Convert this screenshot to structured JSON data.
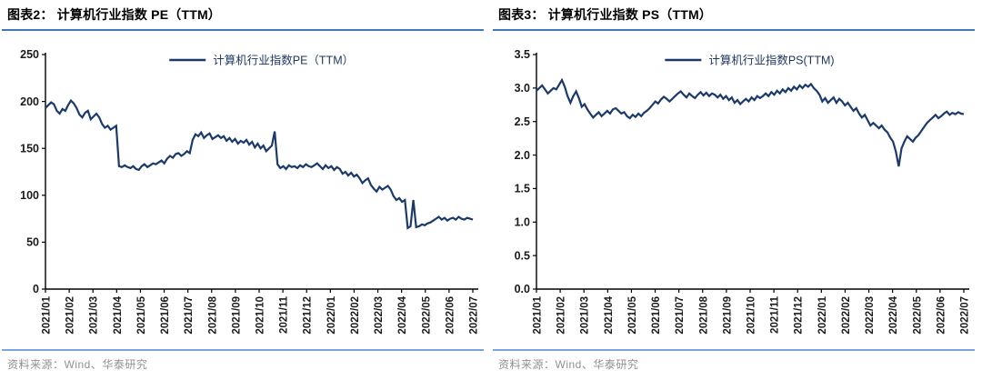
{
  "colors": {
    "line": "#1b3a6b",
    "legend_text": "#1f3864",
    "title_underline": "#4377b8",
    "bottom_rule": "#7ba7d8",
    "axis": "#000000",
    "tick_label": "#1a1a1a",
    "source_text": "#919191"
  },
  "chart_data": [
    {
      "type": "line",
      "title": "图表2：  计算机行业指数 PE（TTM）",
      "legend": "计算机行业指数PE（TTM）",
      "legend_position": "top-center",
      "grid": false,
      "ylim": [
        0,
        250
      ],
      "yticks": [
        0,
        50,
        100,
        150,
        200,
        250
      ],
      "ytick_decimals": 0,
      "categories": [
        "2021/01",
        "2021/02",
        "2021/03",
        "2021/04",
        "2021/05",
        "2021/06",
        "2021/07",
        "2021/08",
        "2021/09",
        "2021/10",
        "2021/11",
        "2021/12",
        "2022/01",
        "2022/02",
        "2022/03",
        "2022/04",
        "2022/05",
        "2022/06",
        "2022/07"
      ],
      "series": [
        {
          "name": "计算机行业指数PE（TTM）",
          "values": [
            193,
            196,
            199,
            197,
            190,
            187,
            192,
            190,
            196,
            201,
            198,
            193,
            186,
            183,
            188,
            190,
            181,
            184,
            187,
            183,
            176,
            172,
            174,
            170,
            172,
            174,
            131,
            130,
            132,
            130,
            129,
            131,
            128,
            127,
            131,
            133,
            130,
            132,
            134,
            133,
            135,
            137,
            134,
            139,
            142,
            140,
            144,
            145,
            142,
            144,
            147,
            145,
            159,
            165,
            163,
            167,
            161,
            164,
            166,
            160,
            162,
            164,
            161,
            163,
            158,
            161,
            157,
            160,
            155,
            158,
            156,
            159,
            154,
            157,
            151,
            155,
            150,
            153,
            147,
            150,
            153,
            168,
            133,
            129,
            131,
            128,
            132,
            130,
            131,
            129,
            132,
            130,
            133,
            131,
            130,
            132,
            134,
            131,
            128,
            132,
            129,
            131,
            127,
            130,
            128,
            123,
            125,
            121,
            124,
            120,
            122,
            118,
            113,
            116,
            118,
            111,
            107,
            104,
            109,
            106,
            108,
            110,
            106,
            99,
            95,
            97,
            93,
            95,
            65,
            67,
            95,
            66,
            67,
            69,
            68,
            70,
            71,
            73,
            75,
            77,
            74,
            76,
            73,
            75,
            76,
            74,
            77,
            75,
            74,
            76,
            75,
            74
          ]
        }
      ],
      "source": "资料来源：Wind、华泰研究"
    },
    {
      "type": "line",
      "title": "图表3：  计算机行业指数 PS（TTM）",
      "legend": "计算机行业指数PS(TTM)",
      "legend_position": "top-center",
      "grid": false,
      "ylim": [
        0,
        3.5
      ],
      "yticks": [
        0,
        0.5,
        1.0,
        1.5,
        2.0,
        2.5,
        3.0,
        3.5
      ],
      "ytick_decimals": 1,
      "categories": [
        "2021/01",
        "2021/02",
        "2021/03",
        "2021/04",
        "2021/05",
        "2021/06",
        "2021/07",
        "2021/08",
        "2021/09",
        "2021/10",
        "2021/11",
        "2021/12",
        "2022/01",
        "2022/02",
        "2022/03",
        "2022/04",
        "2022/05",
        "2022/06",
        "2022/07"
      ],
      "series": [
        {
          "name": "计算机行业指数PS(TTM)",
          "values": [
            2.96,
            3.0,
            3.04,
            2.98,
            2.92,
            2.96,
            3.0,
            2.98,
            3.05,
            3.12,
            3.02,
            2.88,
            2.78,
            2.88,
            2.95,
            2.85,
            2.72,
            2.76,
            2.68,
            2.62,
            2.56,
            2.6,
            2.64,
            2.58,
            2.62,
            2.66,
            2.62,
            2.68,
            2.7,
            2.66,
            2.62,
            2.64,
            2.58,
            2.55,
            2.6,
            2.57,
            2.62,
            2.58,
            2.63,
            2.66,
            2.7,
            2.75,
            2.8,
            2.77,
            2.83,
            2.87,
            2.84,
            2.8,
            2.84,
            2.88,
            2.92,
            2.95,
            2.9,
            2.86,
            2.92,
            2.88,
            2.85,
            2.9,
            2.94,
            2.89,
            2.93,
            2.88,
            2.92,
            2.9,
            2.86,
            2.9,
            2.84,
            2.88,
            2.82,
            2.86,
            2.78,
            2.82,
            2.76,
            2.8,
            2.84,
            2.8,
            2.86,
            2.82,
            2.88,
            2.85,
            2.88,
            2.92,
            2.88,
            2.94,
            2.9,
            2.96,
            2.92,
            2.98,
            2.94,
            3.0,
            2.96,
            3.02,
            2.98,
            3.04,
            3.0,
            3.05,
            3.02,
            3.06,
            3.0,
            2.96,
            2.9,
            2.8,
            2.85,
            2.78,
            2.82,
            2.86,
            2.78,
            2.84,
            2.8,
            2.74,
            2.78,
            2.72,
            2.66,
            2.7,
            2.62,
            2.56,
            2.6,
            2.52,
            2.44,
            2.48,
            2.44,
            2.4,
            2.44,
            2.38,
            2.34,
            2.26,
            2.2,
            2.05,
            1.83,
            2.1,
            2.2,
            2.28,
            2.24,
            2.2,
            2.26,
            2.3,
            2.36,
            2.42,
            2.48,
            2.52,
            2.56,
            2.6,
            2.55,
            2.58,
            2.62,
            2.65,
            2.6,
            2.63,
            2.61,
            2.64,
            2.62,
            2.61
          ]
        }
      ],
      "source": "资料来源：Wind、华泰研究"
    }
  ]
}
